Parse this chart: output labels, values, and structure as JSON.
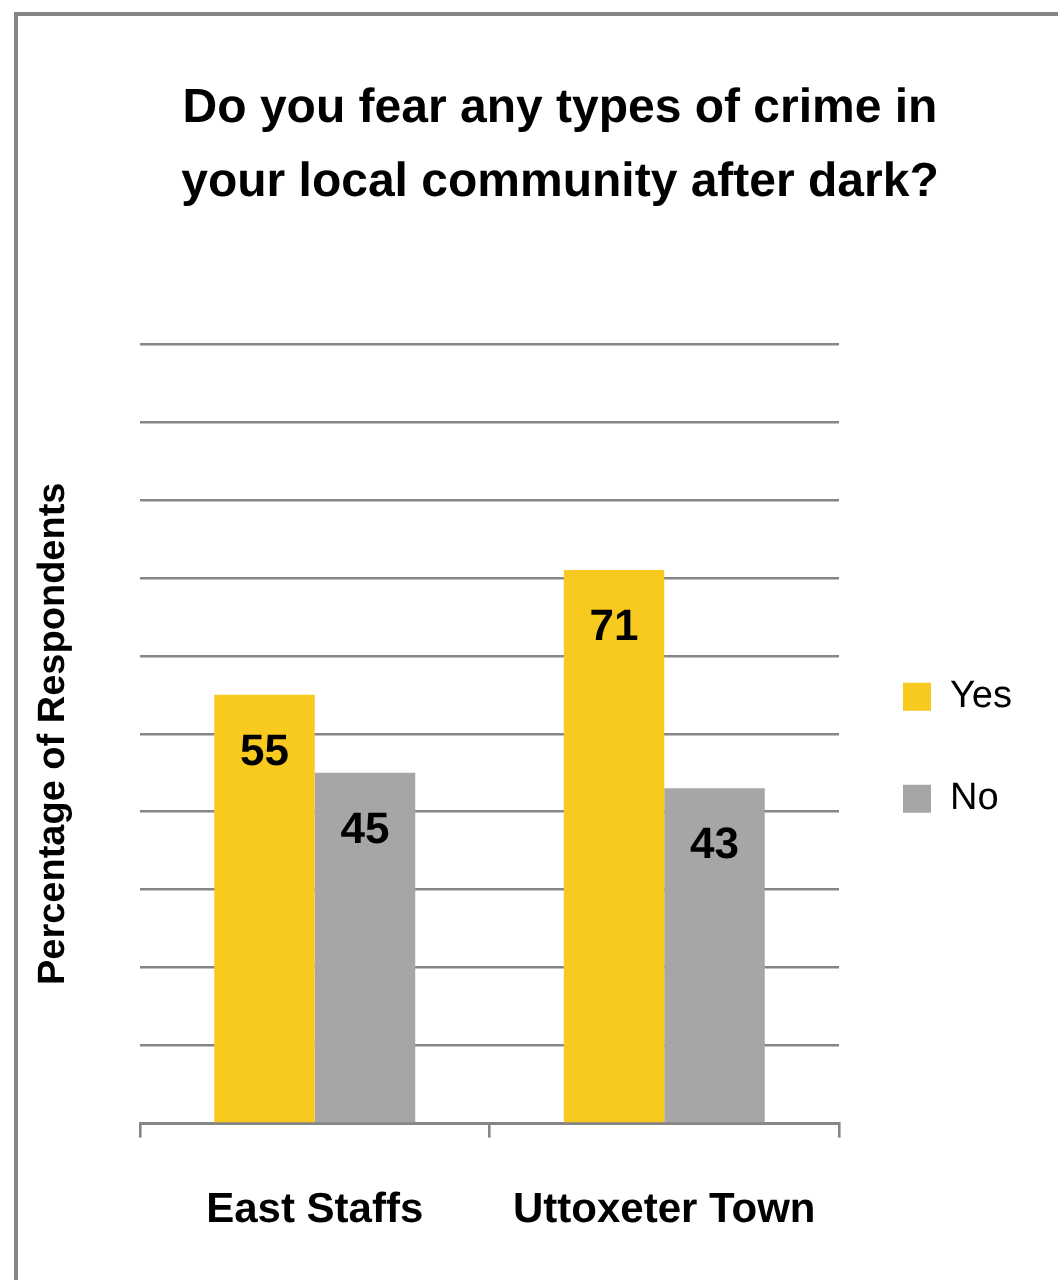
{
  "chart_data": {
    "type": "bar",
    "title": "Do you fear any types of crime in your local community after dark?",
    "ylabel": "Percentage of Respondents",
    "categories": [
      "East Staffs",
      "Uttoxeter Town"
    ],
    "series": [
      {
        "name": "Yes",
        "color": "#f8c91f",
        "values": [
          55,
          71
        ]
      },
      {
        "name": "No",
        "color": "#a6a6a6",
        "values": [
          45,
          43
        ]
      }
    ],
    "ylim": [
      0,
      100
    ],
    "yticks": [
      {
        "value": 0,
        "label": null
      },
      {
        "value": 10,
        "label": null
      },
      {
        "value": 20,
        "label": null
      },
      {
        "value": 30,
        "label": null
      },
      {
        "value": 40,
        "label": null
      },
      {
        "value": 50,
        "label": null
      },
      {
        "value": 60,
        "label": null
      },
      {
        "value": 70,
        "label": null
      },
      {
        "value": 80,
        "label": null
      },
      {
        "value": 90,
        "label": null
      },
      {
        "value": 100,
        "label": null
      }
    ],
    "grid": "y",
    "legend": "right",
    "tick_labels": "x",
    "data_labels": true
  }
}
